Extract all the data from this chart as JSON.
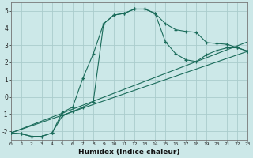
{
  "xlabel": "Humidex (Indice chaleur)",
  "background_color": "#cce8e8",
  "grid_color": "#aacccc",
  "line_color": "#1a6b5a",
  "xlim": [
    0,
    23
  ],
  "ylim": [
    -2.5,
    5.5
  ],
  "xticks": [
    0,
    1,
    2,
    3,
    4,
    5,
    6,
    7,
    8,
    9,
    10,
    11,
    12,
    13,
    14,
    15,
    16,
    17,
    18,
    19,
    20,
    21,
    22,
    23
  ],
  "yticks": [
    -2,
    -1,
    0,
    1,
    2,
    3,
    4,
    5
  ],
  "line1_x": [
    0,
    1,
    2,
    3,
    4,
    5,
    6,
    7,
    8,
    9,
    10,
    11,
    12,
    13,
    14,
    15,
    16,
    17,
    18,
    19,
    20,
    21,
    22,
    23
  ],
  "line1_y": [
    -2.1,
    -2.15,
    -2.3,
    -2.3,
    -2.1,
    -0.9,
    -0.6,
    1.1,
    2.5,
    4.25,
    4.75,
    4.85,
    5.1,
    5.1,
    4.85,
    4.25,
    3.9,
    3.8,
    3.75,
    3.15,
    3.1,
    3.05,
    2.85,
    2.65
  ],
  "line2_x": [
    0,
    1,
    2,
    3,
    4,
    5,
    6,
    7,
    8,
    9,
    10,
    11,
    12,
    13,
    14,
    15,
    16,
    17,
    18,
    19,
    20,
    21,
    22,
    23
  ],
  "line2_y": [
    -2.1,
    -2.15,
    -2.3,
    -2.3,
    -2.1,
    -1.1,
    -0.85,
    -0.6,
    -0.3,
    4.25,
    4.75,
    4.85,
    5.1,
    5.1,
    4.85,
    3.2,
    2.5,
    2.15,
    2.05,
    2.45,
    2.7,
    2.85,
    2.85,
    2.65
  ],
  "line3_x": [
    0,
    23
  ],
  "line3_y": [
    -2.1,
    2.65
  ],
  "line4_x": [
    0,
    23
  ],
  "line4_y": [
    -2.1,
    3.2
  ]
}
